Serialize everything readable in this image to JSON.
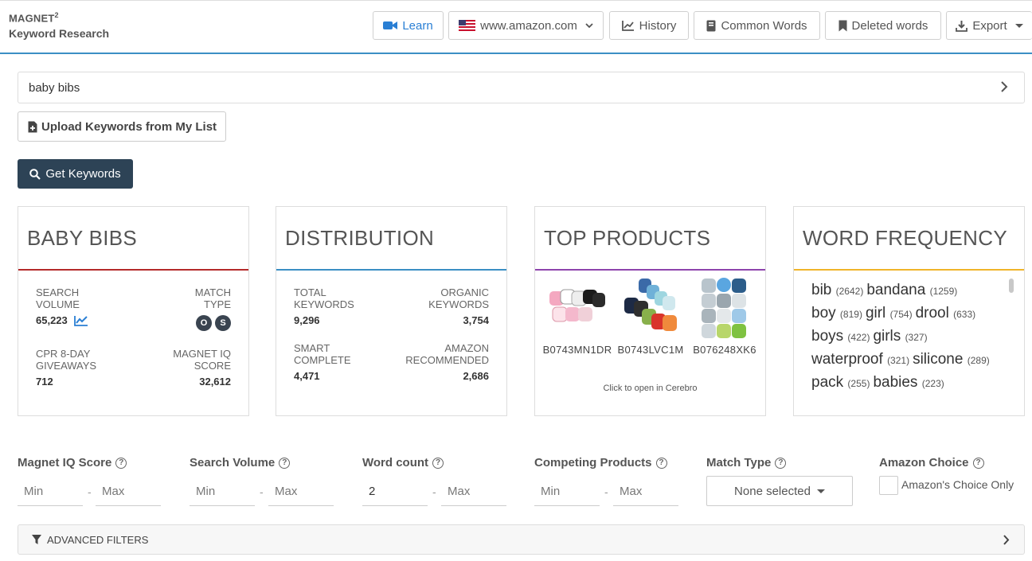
{
  "brand": {
    "name": "MAGNET",
    "sup": "2",
    "subtitle": "Keyword Research"
  },
  "header_buttons": {
    "learn": "Learn",
    "marketplace": "www.amazon.com",
    "history": "History",
    "common_words": "Common Words",
    "deleted_words": "Deleted words",
    "export": "Export"
  },
  "search": {
    "value": "baby bibs"
  },
  "upload_label": "Upload Keywords from My List",
  "get_keywords_label": "Get Keywords",
  "colors": {
    "accent": "#3b8fc4",
    "card1": "#b42a2a",
    "card2": "#3b8fc4",
    "card3": "#8e44ad",
    "card4": "#f0b429",
    "primary_btn": "#2d4356"
  },
  "card_keyword": {
    "title": "BABY BIBS",
    "search_volume_label": "SEARCH VOLUME",
    "search_volume": "65,223",
    "match_type_label": "MATCH TYPE",
    "match_badges": [
      "O",
      "S"
    ],
    "cpr_label": "CPR 8-DAY GIVEAWAYS",
    "cpr": "712",
    "iq_label": "MAGNET IQ SCORE",
    "iq": "32,612"
  },
  "card_distribution": {
    "title": "DISTRIBUTION",
    "total_label": "TOTAL KEYWORDS",
    "total": "9,296",
    "organic_label": "ORGANIC KEYWORDS",
    "organic": "3,754",
    "smart_label": "SMART COMPLETE",
    "smart": "4,471",
    "amazon_label": "AMAZON RECOMMENDED",
    "amazon": "2,686"
  },
  "card_products": {
    "title": "TOP PRODUCTS",
    "products": [
      "B0743MN1DR",
      "B0743LVC1M",
      "B076248XK6"
    ],
    "footer": "Click to open in Cerebro"
  },
  "card_words": {
    "title": "WORD FREQUENCY",
    "lines": [
      [
        {
          "w": "bib",
          "c": "(2642)"
        },
        {
          "w": "bandana",
          "c": "(1259)"
        }
      ],
      [
        {
          "w": "boy",
          "c": "(819)"
        },
        {
          "w": "girl",
          "c": "(754)"
        },
        {
          "w": "drool",
          "c": "(633)"
        }
      ],
      [
        {
          "w": "boys",
          "c": "(422)"
        },
        {
          "w": "girls",
          "c": "(327)"
        }
      ],
      [
        {
          "w": "waterproof",
          "c": "(321)"
        },
        {
          "w": "silicone",
          "c": "(289)"
        }
      ],
      [
        {
          "w": "pack",
          "c": "(255)"
        },
        {
          "w": "babies",
          "c": "(223)"
        }
      ]
    ]
  },
  "filters": {
    "iq": "Magnet IQ Score",
    "volume": "Search Volume",
    "word_count": "Word count",
    "competing": "Competing Products",
    "match_type": "Match Type",
    "amazon_choice": "Amazon Choice",
    "min": "Min",
    "max": "Max",
    "word_count_min_value": "2",
    "dash": "-",
    "match_type_select": "None selected",
    "amazon_choice_only": "Amazon's Choice Only",
    "advanced": "ADVANCED FILTERS",
    "help": "?"
  }
}
